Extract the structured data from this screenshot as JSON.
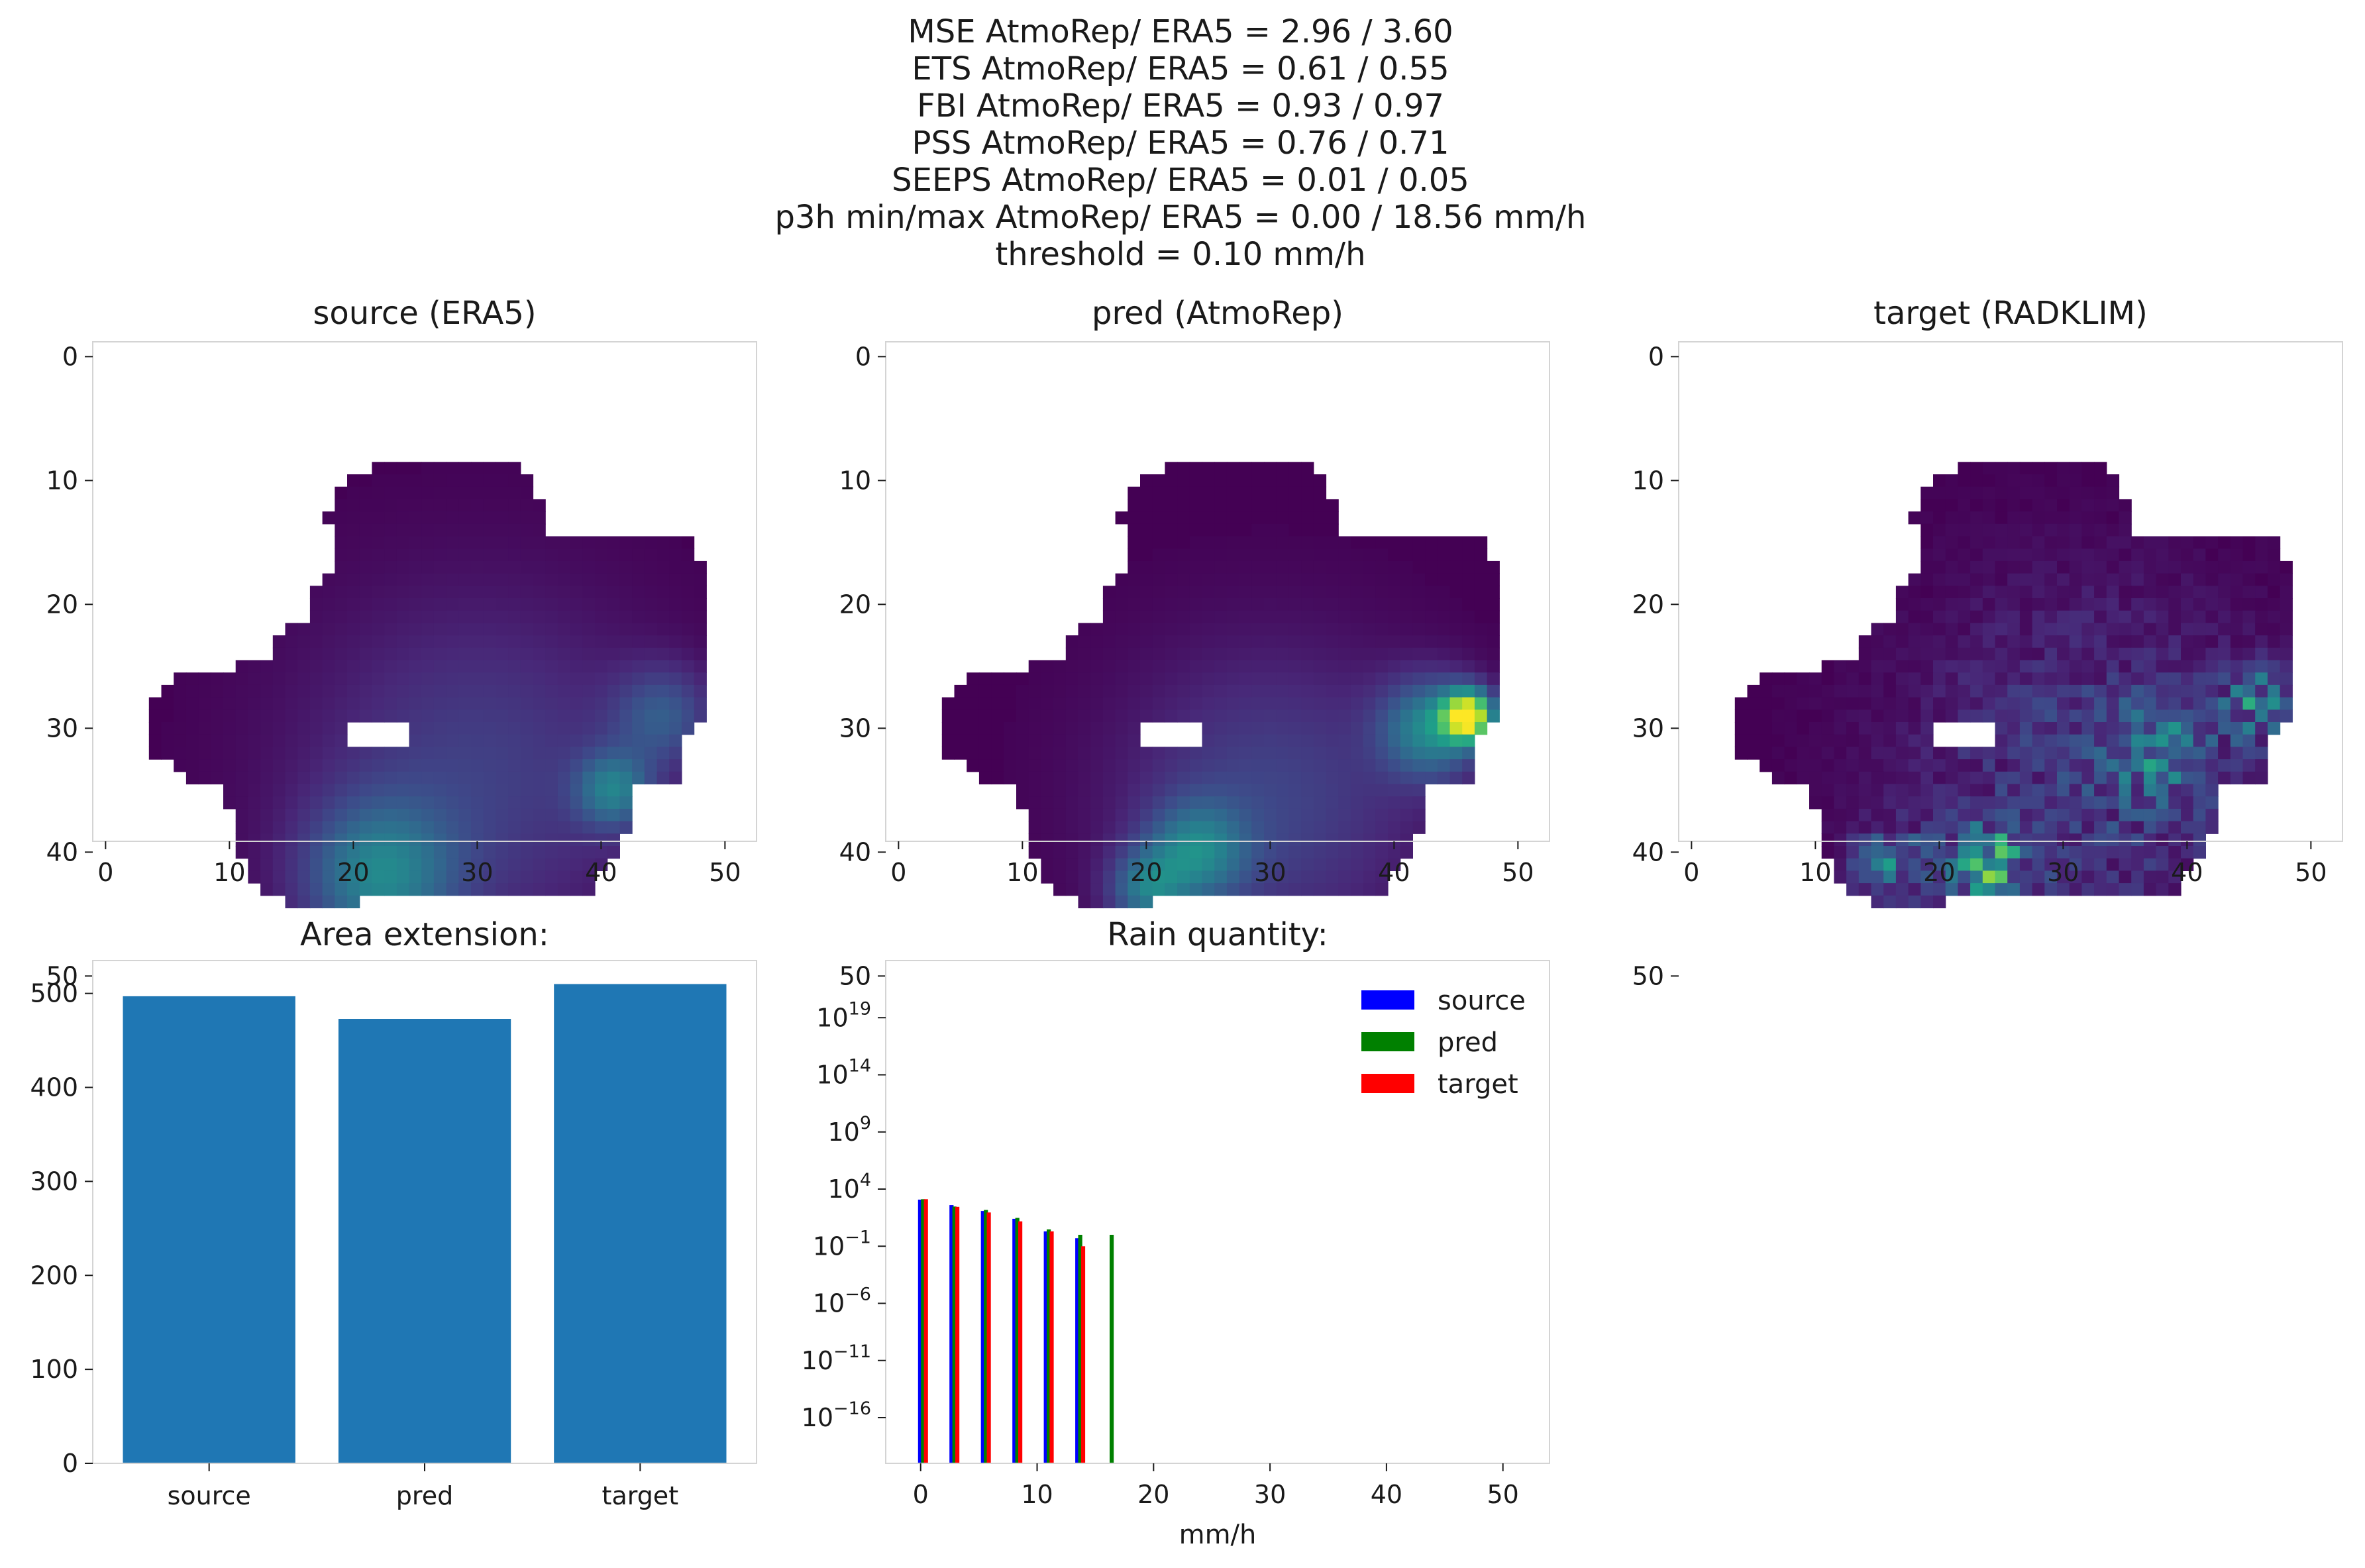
{
  "suptitle": [
    "MSE AtmoRep/ ERA5 = 2.96 / 3.60",
    "ETS AtmoRep/ ERA5 = 0.61 / 0.55",
    "FBI AtmoRep/ ERA5 = 0.93 / 0.97",
    "PSS AtmoRep/ ERA5 = 0.76 / 0.71",
    "SEEPS AtmoRep/ ERA5 = 0.01 / 0.05",
    "p3h min/max AtmoRep/ ERA5 = 0.00 / 18.56 mm/h",
    "threshold = 0.10 mm/h"
  ],
  "colors": {
    "bar": "#1f77b4",
    "source": "#0000ff",
    "pred": "#008000",
    "target": "#ff0000",
    "nodata": "#ffffff",
    "frame": "#d4d4d4",
    "viridis": [
      "#440154",
      "#482878",
      "#3e4989",
      "#31688e",
      "#26828e",
      "#1f9e89",
      "#35b779",
      "#6ece58",
      "#b5de2b",
      "#fde725"
    ]
  },
  "chart_data": [
    {
      "type": "heatmap",
      "title": "source (ERA5)",
      "grid_size": [
        54,
        54
      ],
      "xticks": [
        0,
        10,
        20,
        30,
        40,
        50
      ],
      "yticks": [
        0,
        10,
        20,
        30,
        40,
        50
      ],
      "colormap": "viridis",
      "vmax": 18.56,
      "mask_rows": [
        {
          "y": 9,
          "x0": 22,
          "x1": 33
        },
        {
          "y": 10,
          "x0": 20,
          "x1": 34
        },
        {
          "y": 11,
          "x0": 19,
          "x1": 34
        },
        {
          "y": 12,
          "x0": 19,
          "x1": 35
        },
        {
          "y": 13,
          "x0": 18,
          "x1": 35
        },
        {
          "y": 14,
          "x0": 19,
          "x1": 35
        },
        {
          "y": 15,
          "x0": 19,
          "x1": 47
        },
        {
          "y": 16,
          "x0": 19,
          "x1": 47
        },
        {
          "y": 17,
          "x0": 19,
          "x1": 48
        },
        {
          "y": 18,
          "x0": 18,
          "x1": 48
        },
        {
          "y": 19,
          "x0": 17,
          "x1": 48
        },
        {
          "y": 20,
          "x0": 17,
          "x1": 48
        },
        {
          "y": 21,
          "x0": 17,
          "x1": 48
        },
        {
          "y": 22,
          "x0": 15,
          "x1": 48
        },
        {
          "y": 23,
          "x0": 14,
          "x1": 48
        },
        {
          "y": 24,
          "x0": 14,
          "x1": 48
        },
        {
          "y": 25,
          "x0": 11,
          "x1": 48
        },
        {
          "y": 26,
          "x0": 6,
          "x1": 48
        },
        {
          "y": 27,
          "x0": 5,
          "x1": 48
        },
        {
          "y": 28,
          "x0": 4,
          "x1": 48
        },
        {
          "y": 29,
          "x0": 4,
          "x1": 48
        },
        {
          "y": 30,
          "x0": 4,
          "x1": 47
        },
        {
          "y": 31,
          "x0": 4,
          "x1": 46
        },
        {
          "y": 32,
          "x0": 4,
          "x1": 46
        },
        {
          "y": 33,
          "x0": 6,
          "x1": 46
        },
        {
          "y": 34,
          "x0": 7,
          "x1": 46
        },
        {
          "y": 35,
          "x0": 10,
          "x1": 42
        },
        {
          "y": 36,
          "x0": 10,
          "x1": 42
        },
        {
          "y": 37,
          "x0": 11,
          "x1": 42
        },
        {
          "y": 38,
          "x0": 11,
          "x1": 42
        },
        {
          "y": 39,
          "x0": 11,
          "x1": 41
        },
        {
          "y": 40,
          "x0": 11,
          "x1": 41
        },
        {
          "y": 41,
          "x0": 12,
          "x1": 40
        },
        {
          "y": 42,
          "x0": 12,
          "x1": 39
        },
        {
          "y": 43,
          "x0": 13,
          "x1": 39
        },
        {
          "y": 44,
          "x0": 15,
          "x1": 20
        }
      ],
      "holes": [
        {
          "x0": 20,
          "x1": 24,
          "y0": 30,
          "y1": 31
        }
      ],
      "blobs": [
        {
          "x": 30,
          "y": 34,
          "r": 14,
          "v": 3.5
        },
        {
          "x": 22,
          "y": 42,
          "r": 6,
          "v": 7.0
        },
        {
          "x": 41,
          "y": 35,
          "r": 3,
          "v": 6.5
        },
        {
          "x": 45,
          "y": 29,
          "r": 4,
          "v": 4.5
        }
      ]
    },
    {
      "type": "heatmap",
      "title": "pred (AtmoRep)",
      "grid_size": [
        54,
        54
      ],
      "xticks": [
        0,
        10,
        20,
        30,
        40,
        50
      ],
      "yticks": [
        0,
        10,
        20,
        30,
        40,
        50
      ],
      "colormap": "viridis",
      "vmax": 18.56,
      "mask_rows": [
        {
          "y": 9,
          "x0": 22,
          "x1": 33
        },
        {
          "y": 10,
          "x0": 20,
          "x1": 34
        },
        {
          "y": 11,
          "x0": 19,
          "x1": 34
        },
        {
          "y": 12,
          "x0": 19,
          "x1": 35
        },
        {
          "y": 13,
          "x0": 18,
          "x1": 35
        },
        {
          "y": 14,
          "x0": 19,
          "x1": 35
        },
        {
          "y": 15,
          "x0": 19,
          "x1": 47
        },
        {
          "y": 16,
          "x0": 19,
          "x1": 47
        },
        {
          "y": 17,
          "x0": 19,
          "x1": 48
        },
        {
          "y": 18,
          "x0": 18,
          "x1": 48
        },
        {
          "y": 19,
          "x0": 17,
          "x1": 48
        },
        {
          "y": 20,
          "x0": 17,
          "x1": 48
        },
        {
          "y": 21,
          "x0": 17,
          "x1": 48
        },
        {
          "y": 22,
          "x0": 15,
          "x1": 48
        },
        {
          "y": 23,
          "x0": 14,
          "x1": 48
        },
        {
          "y": 24,
          "x0": 14,
          "x1": 48
        },
        {
          "y": 25,
          "x0": 11,
          "x1": 48
        },
        {
          "y": 26,
          "x0": 6,
          "x1": 48
        },
        {
          "y": 27,
          "x0": 5,
          "x1": 48
        },
        {
          "y": 28,
          "x0": 4,
          "x1": 48
        },
        {
          "y": 29,
          "x0": 4,
          "x1": 48
        },
        {
          "y": 30,
          "x0": 4,
          "x1": 47
        },
        {
          "y": 31,
          "x0": 4,
          "x1": 46
        },
        {
          "y": 32,
          "x0": 4,
          "x1": 46
        },
        {
          "y": 33,
          "x0": 6,
          "x1": 46
        },
        {
          "y": 34,
          "x0": 7,
          "x1": 46
        },
        {
          "y": 35,
          "x0": 10,
          "x1": 42
        },
        {
          "y": 36,
          "x0": 10,
          "x1": 42
        },
        {
          "y": 37,
          "x0": 11,
          "x1": 42
        },
        {
          "y": 38,
          "x0": 11,
          "x1": 42
        },
        {
          "y": 39,
          "x0": 11,
          "x1": 41
        },
        {
          "y": 40,
          "x0": 11,
          "x1": 41
        },
        {
          "y": 41,
          "x0": 12,
          "x1": 40
        },
        {
          "y": 42,
          "x0": 12,
          "x1": 39
        },
        {
          "y": 43,
          "x0": 13,
          "x1": 39
        },
        {
          "y": 44,
          "x0": 15,
          "x1": 20
        }
      ],
      "holes": [
        {
          "x0": 20,
          "x1": 24,
          "y0": 30,
          "y1": 31
        }
      ],
      "blobs": [
        {
          "x": 30,
          "y": 36,
          "r": 12,
          "v": 3.8
        },
        {
          "x": 24,
          "y": 40,
          "r": 4,
          "v": 6.5
        },
        {
          "x": 43,
          "y": 30,
          "r": 4,
          "v": 8.0
        },
        {
          "x": 46,
          "y": 29,
          "r": 2,
          "v": 17.0
        },
        {
          "x": 20,
          "y": 43,
          "r": 3,
          "v": 6.0
        }
      ]
    },
    {
      "type": "heatmap",
      "title": "target (RADKLIM)",
      "grid_size": [
        54,
        54
      ],
      "xticks": [
        0,
        10,
        20,
        30,
        40,
        50
      ],
      "yticks": [
        0,
        10,
        20,
        30,
        40,
        50
      ],
      "colormap": "viridis",
      "vmax": 18.56,
      "mask_rows": [
        {
          "y": 9,
          "x0": 22,
          "x1": 33
        },
        {
          "y": 10,
          "x0": 20,
          "x1": 34
        },
        {
          "y": 11,
          "x0": 19,
          "x1": 34
        },
        {
          "y": 12,
          "x0": 19,
          "x1": 35
        },
        {
          "y": 13,
          "x0": 18,
          "x1": 35
        },
        {
          "y": 14,
          "x0": 19,
          "x1": 35
        },
        {
          "y": 15,
          "x0": 19,
          "x1": 47
        },
        {
          "y": 16,
          "x0": 19,
          "x1": 47
        },
        {
          "y": 17,
          "x0": 19,
          "x1": 48
        },
        {
          "y": 18,
          "x0": 18,
          "x1": 48
        },
        {
          "y": 19,
          "x0": 17,
          "x1": 48
        },
        {
          "y": 20,
          "x0": 17,
          "x1": 48
        },
        {
          "y": 21,
          "x0": 17,
          "x1": 48
        },
        {
          "y": 22,
          "x0": 15,
          "x1": 48
        },
        {
          "y": 23,
          "x0": 14,
          "x1": 48
        },
        {
          "y": 24,
          "x0": 14,
          "x1": 48
        },
        {
          "y": 25,
          "x0": 11,
          "x1": 48
        },
        {
          "y": 26,
          "x0": 6,
          "x1": 48
        },
        {
          "y": 27,
          "x0": 5,
          "x1": 48
        },
        {
          "y": 28,
          "x0": 4,
          "x1": 48
        },
        {
          "y": 29,
          "x0": 4,
          "x1": 48
        },
        {
          "y": 30,
          "x0": 4,
          "x1": 47
        },
        {
          "y": 31,
          "x0": 4,
          "x1": 46
        },
        {
          "y": 32,
          "x0": 4,
          "x1": 46
        },
        {
          "y": 33,
          "x0": 6,
          "x1": 46
        },
        {
          "y": 34,
          "x0": 7,
          "x1": 46
        },
        {
          "y": 35,
          "x0": 10,
          "x1": 42
        },
        {
          "y": 36,
          "x0": 10,
          "x1": 42
        },
        {
          "y": 37,
          "x0": 11,
          "x1": 42
        },
        {
          "y": 38,
          "x0": 11,
          "x1": 42
        },
        {
          "y": 39,
          "x0": 11,
          "x1": 41
        },
        {
          "y": 40,
          "x0": 11,
          "x1": 41
        },
        {
          "y": 41,
          "x0": 12,
          "x1": 40
        },
        {
          "y": 42,
          "x0": 12,
          "x1": 39
        },
        {
          "y": 43,
          "x0": 13,
          "x1": 39
        },
        {
          "y": 44,
          "x0": 15,
          "x1": 20
        }
      ],
      "holes": [
        {
          "x0": 20,
          "x1": 24,
          "y0": 30,
          "y1": 31
        }
      ],
      "blobs": [
        {
          "x": 32,
          "y": 34,
          "r": 14,
          "v": 3.2
        },
        {
          "x": 24,
          "y": 41,
          "r": 3,
          "v": 9.0
        },
        {
          "x": 16,
          "y": 41,
          "r": 3,
          "v": 5.5
        },
        {
          "x": 38,
          "y": 32,
          "r": 4,
          "v": 4.5
        },
        {
          "x": 46,
          "y": 28,
          "r": 3,
          "v": 6.5
        }
      ],
      "noise": 1.4
    },
    {
      "type": "bar",
      "title": "Area extension:",
      "categories": [
        "source",
        "pred",
        "target"
      ],
      "values": [
        497,
        473,
        510
      ],
      "ylim": [
        0,
        535
      ],
      "yticks": [
        0,
        100,
        200,
        300,
        400,
        500
      ]
    },
    {
      "type": "bar",
      "title": "Rain quantity:",
      "xlabel": "mm/h",
      "yscale": "log",
      "ylim_exp": [
        -20,
        24
      ],
      "yticks_exp": [
        -16,
        -11,
        -6,
        -1,
        4,
        9,
        14,
        19
      ],
      "xlim": [
        -3,
        54
      ],
      "xticks": [
        0,
        10,
        20,
        30,
        40,
        50
      ],
      "legend": "upper right",
      "bin_width": 0.35,
      "series": [
        {
          "name": "source",
          "bins": [
            -0.05,
            2.65,
            5.35,
            8.05,
            10.75,
            13.45
          ],
          "values": [
            1200,
            400,
            120,
            25,
            2,
            0.5
          ]
        },
        {
          "name": "pred",
          "bins": [
            0.2,
            2.9,
            5.6,
            8.3,
            11.0,
            13.7,
            16.4
          ],
          "values": [
            1300,
            300,
            150,
            30,
            3,
            1,
            1
          ]
        },
        {
          "name": "target",
          "bins": [
            0.45,
            3.15,
            5.85,
            8.55,
            11.25,
            13.95
          ],
          "values": [
            1300,
            280,
            90,
            15,
            2,
            0.1
          ]
        }
      ]
    }
  ]
}
